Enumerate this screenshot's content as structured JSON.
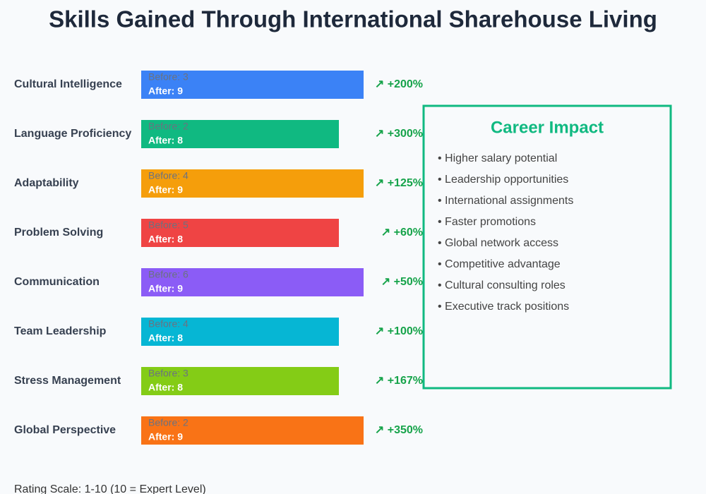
{
  "chart_data": {
    "type": "bar",
    "orientation": "horizontal",
    "title": "Skills Gained Through International Sharehouse Living",
    "categories": [
      "Cultural Intelligence",
      "Language Proficiency",
      "Adaptability",
      "Problem Solving",
      "Communication",
      "Team Leadership",
      "Stress Management",
      "Global Perspective"
    ],
    "colors": [
      "#3b82f6",
      "#10b981",
      "#f59e0b",
      "#ef4444",
      "#8b5cf6",
      "#06b6d4",
      "#84cc16",
      "#f97316"
    ],
    "series": [
      {
        "name": "Before",
        "values": [
          3,
          2,
          4,
          5,
          6,
          4,
          3,
          2
        ],
        "value_labels": [
          "Before: 3",
          "Before: 2",
          "Before: 4",
          "Before: 5",
          "Before: 6",
          "Before: 4",
          "Before: 3",
          "Before: 2"
        ]
      },
      {
        "name": "After",
        "values": [
          9,
          8,
          9,
          8,
          9,
          8,
          8,
          9
        ],
        "value_labels": [
          "After: 9",
          "After: 8",
          "After: 9",
          "After: 8",
          "After: 9",
          "After: 8",
          "After: 8",
          "After: 9"
        ]
      }
    ],
    "improvement_labels": [
      "↗ +200%",
      "↗ +300%",
      "↗ +125%",
      "↗ +60%",
      "↗ +50%",
      "↗ +100%",
      "↗ +167%",
      "↗ +350%"
    ],
    "xlim": [
      0,
      10
    ],
    "note": "Rating Scale: 1-10 (10 = Expert Level)"
  },
  "career_impact": {
    "title": "Career Impact",
    "items": [
      "• Higher salary potential",
      "• Leadership opportunities",
      "• International assignments",
      "• Faster promotions",
      "• Global network access",
      "• Competitive advantage",
      "• Cultural consulting roles",
      "• Executive track positions"
    ]
  }
}
